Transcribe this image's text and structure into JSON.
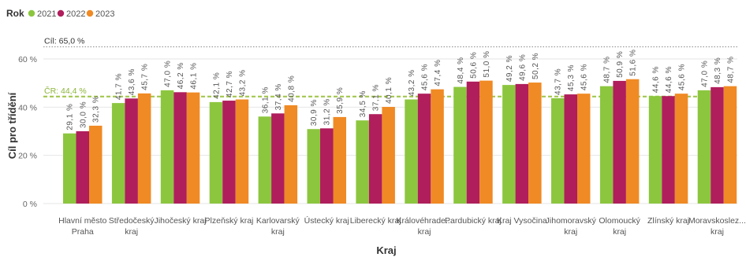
{
  "legend": {
    "title": "Rok",
    "items": [
      {
        "label": "2021",
        "color": "#8cc63f"
      },
      {
        "label": "2022",
        "color": "#b01e5c"
      },
      {
        "label": "2023",
        "color": "#f08a24"
      }
    ]
  },
  "chart_data": {
    "type": "bar",
    "title": "",
    "xlabel": "Kraj",
    "ylabel": "Cíl pro třídění",
    "ylim": [
      0,
      65
    ],
    "yticks": [
      "0 %",
      "20 %",
      "40 %",
      "60 %"
    ],
    "yticks_values": [
      0,
      20,
      40,
      60
    ],
    "grid": true,
    "legend_position": "top-left",
    "categories": [
      [
        "Hlavní město",
        "Praha"
      ],
      [
        "Středočeský",
        "kraj"
      ],
      [
        "Jihočeský kraj"
      ],
      [
        "Plzeňský kraj"
      ],
      [
        "Karlovarský",
        "kraj"
      ],
      [
        "Ústecký kraj"
      ],
      [
        "Liberecký kraj"
      ],
      [
        "Královéhrade...",
        "kraj"
      ],
      [
        "Pardubický kraj"
      ],
      [
        "Kraj Vysočina"
      ],
      [
        "Jihomoravský",
        "kraj"
      ],
      [
        "Olomoucký",
        "kraj"
      ],
      [
        "Zlínský kraj"
      ],
      [
        "Moravskoslez...",
        "kraj"
      ]
    ],
    "series": [
      {
        "name": "2021",
        "color": "#8cc63f",
        "values": [
          29.1,
          41.7,
          47.0,
          42.1,
          36.1,
          30.9,
          34.5,
          43.2,
          48.4,
          49.2,
          43.7,
          48.7,
          44.6,
          47.0
        ],
        "labels": [
          "29,1 %",
          "41,7 %",
          "47,0 %",
          "42,1 %",
          "36,1 %",
          "30,9 %",
          "34,5 %",
          "43,2 %",
          "48,4 %",
          "49,2 %",
          "43,7 %",
          "48,7 %",
          "44,6 %",
          "47,0 %"
        ]
      },
      {
        "name": "2022",
        "color": "#b01e5c",
        "values": [
          30.0,
          43.6,
          46.2,
          42.7,
          37.4,
          31.2,
          37.1,
          45.6,
          50.6,
          49.6,
          45.3,
          50.9,
          44.6,
          48.3
        ],
        "labels": [
          "30,0 %",
          "43,6 %",
          "46,2 %",
          "42,7 %",
          "37,4 %",
          "31,2 %",
          "37,1 %",
          "45,6 %",
          "50,6 %",
          "49,6 %",
          "45,3 %",
          "50,9 %",
          "44,6 %",
          "48,3 %"
        ]
      },
      {
        "name": "2023",
        "color": "#f08a24",
        "values": [
          32.3,
          45.7,
          46.1,
          43.2,
          40.8,
          35.9,
          40.1,
          47.4,
          51.0,
          50.2,
          45.6,
          51.6,
          45.6,
          48.7
        ],
        "labels": [
          "32,3 %",
          "45,7 %",
          "46,1 %",
          "43,2 %",
          "40,8 %",
          "35,9 %",
          "40,1 %",
          "47,4 %",
          "51,0 %",
          "50,2 %",
          "45,6 %",
          "51,6 %",
          "45,6 %",
          "48,7 %"
        ]
      }
    ],
    "reference_lines": [
      {
        "label": "Cíl: 65,0 %",
        "value": 65.0,
        "color": "#888888",
        "style": "dotted"
      },
      {
        "label": "ČR: 44,4 %",
        "value": 44.4,
        "color": "#a7c957",
        "style": "dashed"
      }
    ]
  }
}
